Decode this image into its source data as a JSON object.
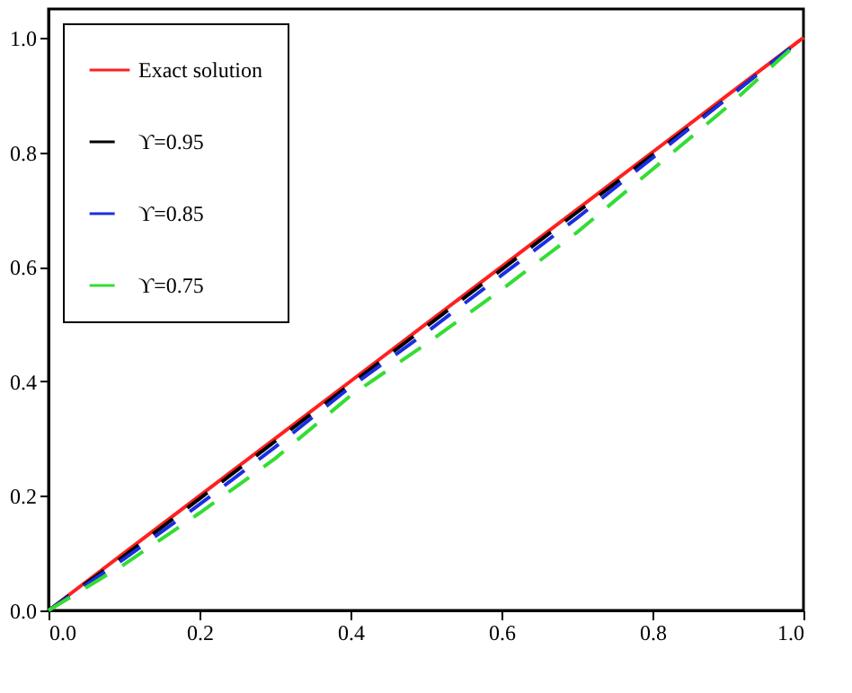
{
  "chart_data": {
    "type": "line",
    "x": [
      0,
      0.1,
      0.2,
      0.3,
      0.4,
      0.5,
      0.6,
      0.7,
      0.8,
      0.9,
      1.0
    ],
    "series": [
      {
        "name": "Exact solution",
        "color": "#ff2020",
        "line_style": "solid",
        "values": [
          0,
          0.1,
          0.2,
          0.3,
          0.4,
          0.5,
          0.6,
          0.7,
          0.8,
          0.9,
          1.0
        ]
      },
      {
        "name": "ϒ=0.95",
        "color": "#000000",
        "line_style": "dashed",
        "values": [
          0,
          0.095,
          0.195,
          0.295,
          0.395,
          0.495,
          0.595,
          0.695,
          0.795,
          0.895,
          1.0
        ]
      },
      {
        "name": "ϒ=0.85",
        "color": "#1a2ee0",
        "line_style": "dashed",
        "values": [
          0,
          0.09,
          0.185,
          0.285,
          0.39,
          0.485,
          0.585,
          0.685,
          0.79,
          0.895,
          1.0
        ]
      },
      {
        "name": "ϒ=0.75",
        "color": "#33dd33",
        "line_style": "dashed",
        "values": [
          0,
          0.08,
          0.17,
          0.265,
          0.375,
          0.465,
          0.56,
          0.66,
          0.77,
          0.88,
          1.0
        ]
      }
    ],
    "xlim": [
      0,
      1.0
    ],
    "ylim": [
      0,
      1.05
    ],
    "xticks": [
      {
        "value": 0,
        "label": "0.0"
      },
      {
        "value": 0.2,
        "label": "0.2"
      },
      {
        "value": 0.4,
        "label": "0.4"
      },
      {
        "value": 0.6,
        "label": "0.6"
      },
      {
        "value": 0.8,
        "label": "0.8"
      },
      {
        "value": 1.0,
        "label": "1.0"
      }
    ],
    "yticks": [
      {
        "value": 0,
        "label": "0.0"
      },
      {
        "value": 0.2,
        "label": "0.2"
      },
      {
        "value": 0.4,
        "label": "0.4"
      },
      {
        "value": 0.6,
        "label": "0.6"
      },
      {
        "value": 0.8,
        "label": "0.8"
      },
      {
        "value": 1.0,
        "label": "1.0"
      }
    ],
    "grid": false,
    "legend": "top left",
    "marker": "none"
  }
}
